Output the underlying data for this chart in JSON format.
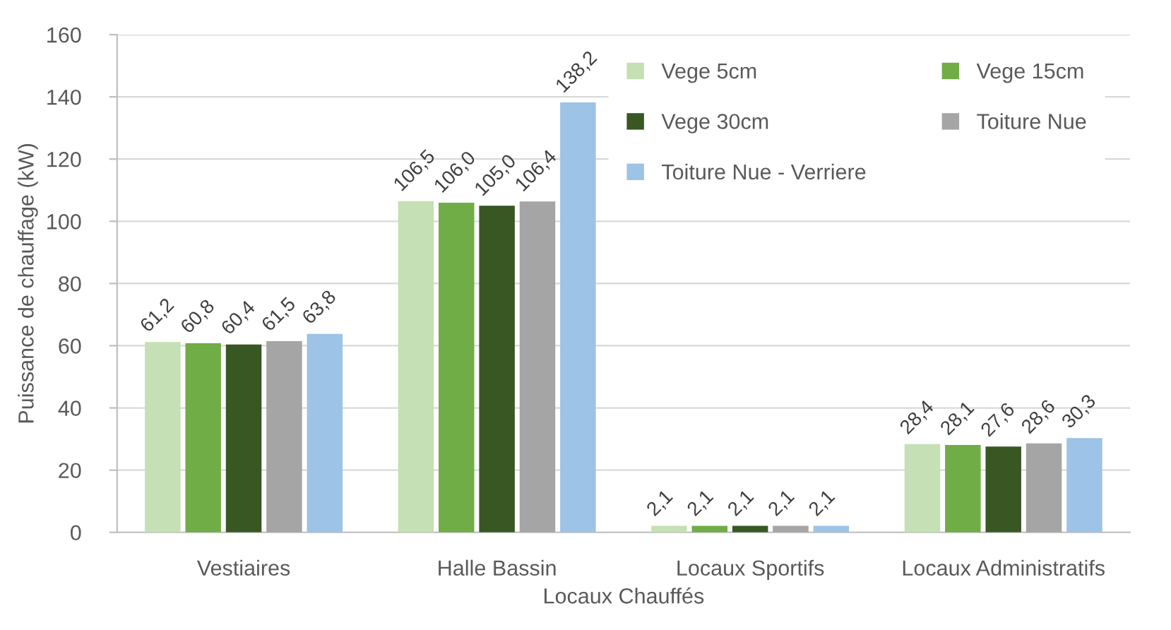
{
  "chart_data": {
    "type": "bar",
    "xlabel": "Locaux Chauffés",
    "ylabel": "Puissance de chauffage (kW)",
    "categories": [
      "Vestiaires",
      "Halle Bassin",
      "Locaux Sportifs",
      "Locaux Administratifs"
    ],
    "series": [
      {
        "name": "Vege 5cm",
        "color": "#c5e0b4",
        "values": [
          61.2,
          106.5,
          2.1,
          28.4
        ],
        "value_labels": [
          "61,2",
          "106,5",
          "2,1",
          "28,4"
        ]
      },
      {
        "name": "Vege 15cm",
        "color": "#70ad47",
        "values": [
          60.8,
          106.0,
          2.1,
          28.1
        ],
        "value_labels": [
          "60,8",
          "106,0",
          "2,1",
          "28,1"
        ]
      },
      {
        "name": "Vege 30cm",
        "color": "#385723",
        "values": [
          60.4,
          105.0,
          2.1,
          27.6
        ],
        "value_labels": [
          "60,4",
          "105,0",
          "2,1",
          "27,6"
        ]
      },
      {
        "name": "Toiture Nue",
        "color": "#a5a5a5",
        "values": [
          61.5,
          106.4,
          2.1,
          28.6
        ],
        "value_labels": [
          "61,5",
          "106,4",
          "2,1",
          "28,6"
        ]
      },
      {
        "name": "Toiture Nue - Verriere",
        "color": "#9dc3e6",
        "values": [
          63.8,
          138.2,
          2.1,
          30.3
        ],
        "value_labels": [
          "63,8",
          "138,2",
          "2,1",
          "30,3"
        ]
      }
    ],
    "ylim": [
      0,
      160
    ],
    "yticks": [
      0,
      20,
      40,
      60,
      80,
      100,
      120,
      140,
      160
    ],
    "grid": "y",
    "legend": "top right"
  }
}
